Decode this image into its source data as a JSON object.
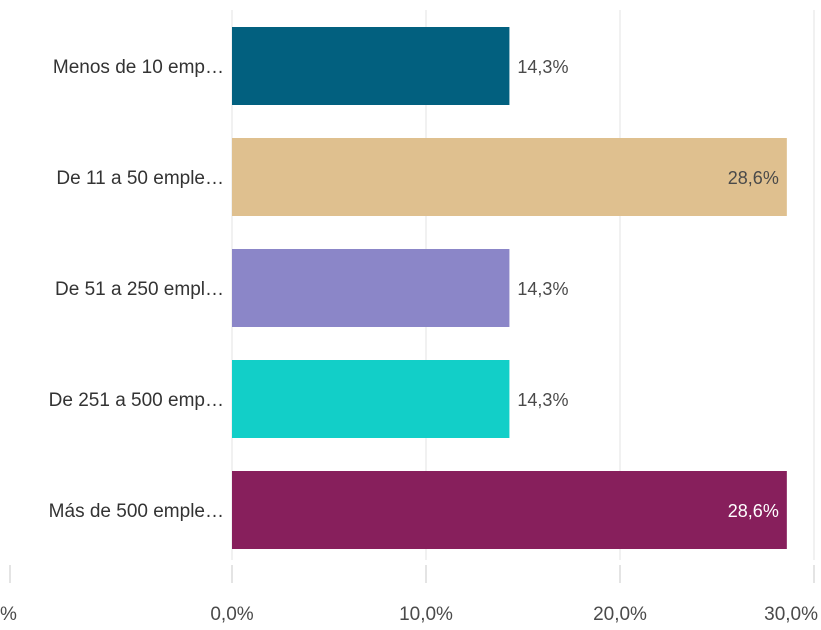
{
  "chart_data": {
    "type": "bar",
    "orientation": "horizontal",
    "categories": [
      "Menos de 10 emp…",
      "De 11 a 50 emple…",
      "De 51 a 250 empl…",
      "De 251 a 500 emp…",
      "Más de 500 emple…"
    ],
    "values": [
      14.3,
      28.6,
      14.3,
      14.3,
      28.6
    ],
    "value_labels": [
      "14,3%",
      "28,6%",
      "14,3%",
      "14,3%",
      "28,6%"
    ],
    "bar_colors": [
      "#02607f",
      "#dfc08f",
      "#8b86c8",
      "#12cfc8",
      "#871f5c"
    ],
    "value_label_colors": [
      "#4a4a4a",
      "#4a4a4a",
      "#4a4a4a",
      "#4a4a4a",
      "#ffffff"
    ],
    "value_label_inside": [
      false,
      true,
      false,
      false,
      true
    ],
    "xlim": [
      0,
      30
    ],
    "xticks": [
      0,
      10,
      20,
      30
    ],
    "xtick_labels": [
      "0,0%",
      "10,0%",
      "20,0%",
      "30,0%"
    ],
    "left_partial_tick_label": "%",
    "grid": true,
    "legend": "none",
    "title": "",
    "xlabel": "",
    "ylabel": ""
  }
}
